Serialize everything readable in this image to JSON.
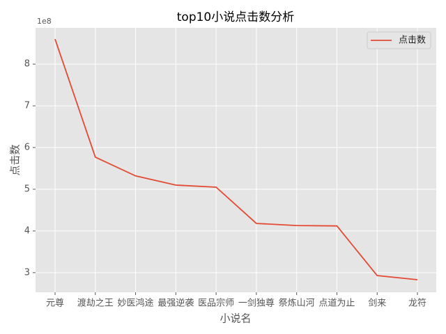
{
  "chart_data": {
    "type": "line",
    "title": "top10小说点击数分析",
    "x_label": "小说名",
    "y_label": "点击数",
    "y_offset_label": "1e8",
    "categories": [
      "元尊",
      "渡劫之王",
      "妙医鸿途",
      "最强逆袭",
      "医品宗师",
      "一剑独尊",
      "祭炼山河",
      "点道为止",
      "剑来",
      "龙符"
    ],
    "series": [
      {
        "name": "点击数",
        "color": "#e24a33",
        "values": [
          860000000,
          577000000,
          532000000,
          510000000,
          505000000,
          418000000,
          413000000,
          412000000,
          293000000,
          283000000
        ]
      }
    ],
    "ylim": [
      253000000,
      887000000
    ],
    "yticks": [
      {
        "value": 300000000,
        "label": "3"
      },
      {
        "value": 400000000,
        "label": "4"
      },
      {
        "value": 500000000,
        "label": "5"
      },
      {
        "value": 600000000,
        "label": "6"
      },
      {
        "value": 700000000,
        "label": "7"
      },
      {
        "value": 800000000,
        "label": "8"
      }
    ],
    "grid": true,
    "legend": "upper right"
  }
}
